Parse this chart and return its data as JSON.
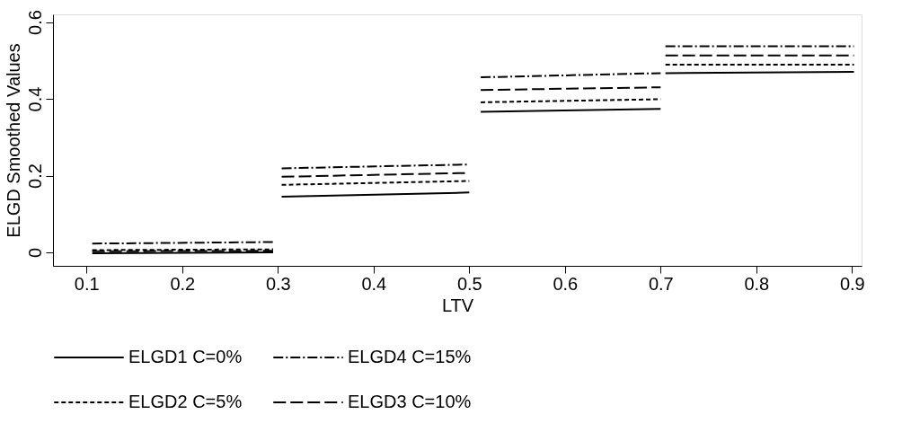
{
  "chart_data": {
    "type": "line",
    "xlabel": "LTV",
    "ylabel": "ELGD Smoothed Values",
    "xlim": [
      0.065,
      0.91
    ],
    "xticks": [
      0.1,
      0.2,
      0.3,
      0.4,
      0.5,
      0.6,
      0.7,
      0.8,
      0.9
    ],
    "ylim": [
      -0.035,
      0.62
    ],
    "yticks": [
      0,
      0.2,
      0.4,
      0.6
    ],
    "x": [
      0.106,
      0.295,
      0.3,
      0.304,
      0.5,
      0.506,
      0.512,
      0.7,
      0.702,
      0.705,
      0.902
    ],
    "series": [
      {
        "name": "ELGD1 C=0%",
        "color": "#000000",
        "line_style": "solid",
        "values": [
          -0.002,
          0.0,
          null,
          0.145,
          0.156,
          null,
          0.366,
          0.374,
          null,
          0.467,
          0.47
        ]
      },
      {
        "name": "ELGD4 C=15%",
        "color": "#000000",
        "line_style": "dashdot",
        "values": [
          0.023,
          0.027,
          null,
          0.219,
          0.229,
          null,
          0.456,
          0.467,
          null,
          0.537,
          0.537
        ]
      },
      {
        "name": "ELGD2 C=5%",
        "color": "#000000",
        "line_style": "dashed",
        "values": [
          0.006,
          0.008,
          null,
          0.176,
          0.186,
          null,
          0.391,
          0.399,
          null,
          0.489,
          0.489
        ]
      },
      {
        "name": "ELGD3 C=10%",
        "color": "#000000",
        "line_style": "longdash",
        "values": [
          0.003,
          0.004,
          null,
          0.197,
          0.207,
          null,
          0.423,
          0.43,
          null,
          0.513,
          0.513
        ]
      }
    ],
    "legend": "bottom",
    "grid": false
  }
}
